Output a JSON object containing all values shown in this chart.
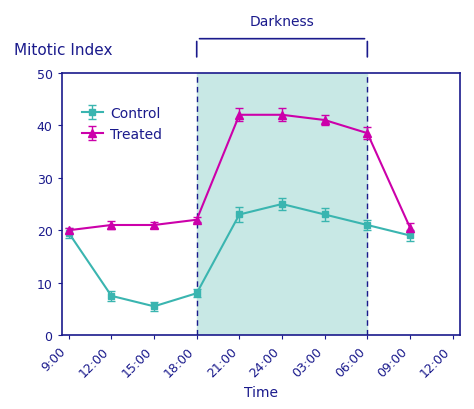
{
  "title_ylabel": "Mitotic Index",
  "xlabel": "Time",
  "darkness_label": "Darkness",
  "x_labels": [
    "9:00",
    "12:00",
    "15:00",
    "18:00",
    "21:00",
    "24:00",
    "03:00",
    "06:00",
    "09:00",
    "12:00"
  ],
  "x_values": [
    0,
    3,
    6,
    9,
    12,
    15,
    18,
    21,
    24,
    27
  ],
  "control_y": [
    19.5,
    7.5,
    5.5,
    8.0,
    23.0,
    25.0,
    23.0,
    21.0,
    19.0
  ],
  "control_err": [
    1.0,
    1.0,
    0.8,
    0.8,
    1.5,
    1.2,
    1.2,
    1.0,
    1.0
  ],
  "treated_y": [
    20.0,
    21.0,
    21.0,
    22.0,
    42.0,
    42.0,
    41.0,
    38.5,
    20.5
  ],
  "treated_err": [
    0.5,
    0.8,
    0.5,
    0.5,
    1.2,
    1.2,
    1.0,
    1.2,
    0.8
  ],
  "darkness_start": 9,
  "darkness_end": 21,
  "ylim": [
    0,
    50
  ],
  "yticks": [
    0,
    10,
    20,
    30,
    40,
    50
  ],
  "xlim": [
    -0.5,
    27.5
  ],
  "control_color": "#3ab5b0",
  "treated_color": "#cc00aa",
  "axis_color": "#1a1a8c",
  "background_color": "#ffffff",
  "shade_color": "#c8e8e5",
  "label_color": "#1a1a8c",
  "font_size_title": 11,
  "font_size_axis": 10,
  "font_size_ticks": 9,
  "font_size_legend": 10,
  "font_size_darkness": 10
}
